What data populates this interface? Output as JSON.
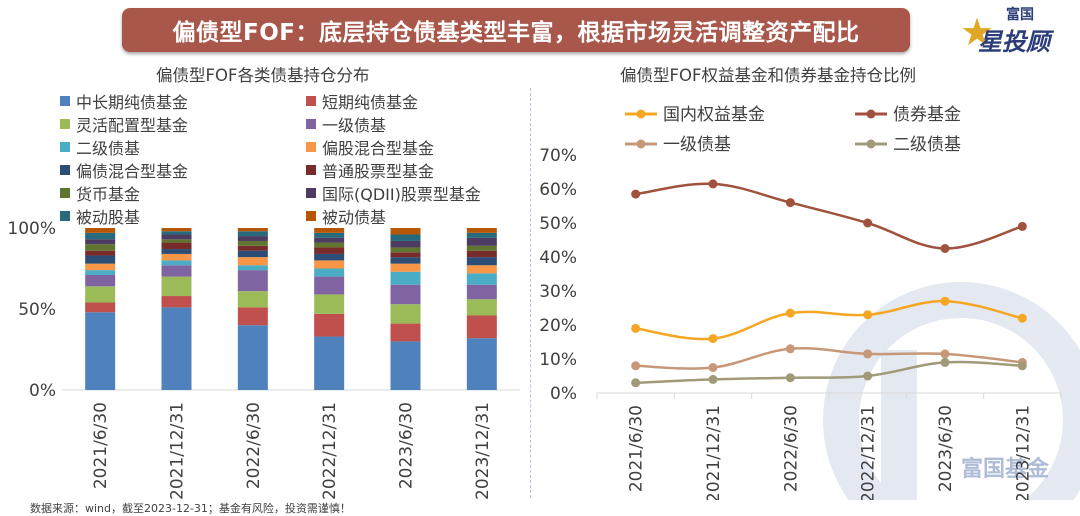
{
  "header": {
    "title": "偏债型FOF：底层持仓债基类型丰富，根据市场灵活调整资产配比",
    "logo_top": "富国",
    "logo_main": "星投顾"
  },
  "watermark": "富国基金",
  "footer": "数据来源：wind，截至2023-12-31；基金有风险，投资需谨慎！",
  "colors": {
    "banner": "#a8574a",
    "divider": "#b8c4d8"
  },
  "chart_data": [
    {
      "type": "bar",
      "stacked": true,
      "title": "偏债型FOF各类债基持仓分布",
      "categories": [
        "2021/6/30",
        "2021/12/31",
        "2022/6/30",
        "2022/12/31",
        "2023/6/30",
        "2023/12/31"
      ],
      "ylim": [
        0,
        100
      ],
      "yticks": [
        "0%",
        "50%",
        "100%"
      ],
      "legend_placement": "top",
      "series": [
        {
          "name": "中长期纯债基金",
          "color": "#4f81bd",
          "values": [
            48,
            51,
            40,
            33,
            30,
            32
          ]
        },
        {
          "name": "短期纯债基金",
          "color": "#c0504d",
          "values": [
            6,
            7,
            11,
            14,
            11,
            14
          ]
        },
        {
          "name": "灵活配置型基金",
          "color": "#9bbb59",
          "values": [
            10,
            12,
            10,
            12,
            12,
            10
          ]
        },
        {
          "name": "一级债基",
          "color": "#8064a2",
          "values": [
            7,
            7,
            13,
            11,
            12,
            9
          ]
        },
        {
          "name": "二级债基",
          "color": "#4bacc6",
          "values": [
            3,
            3,
            3,
            5,
            8,
            7
          ]
        },
        {
          "name": "偏股混合型基金",
          "color": "#f79646",
          "values": [
            4,
            4,
            5,
            5,
            5,
            5
          ]
        },
        {
          "name": "偏债混合型基金",
          "color": "#2c4d75",
          "values": [
            5,
            3,
            4,
            4,
            4,
            5
          ]
        },
        {
          "name": "普通股票型基金",
          "color": "#772c2a",
          "values": [
            3,
            4,
            3,
            4,
            3,
            4
          ]
        },
        {
          "name": "货币基金",
          "color": "#5f7530",
          "values": [
            4,
            2,
            3,
            3,
            3,
            3
          ]
        },
        {
          "name": "国际(QDII)股票型基金",
          "color": "#4d3b62",
          "values": [
            3,
            3,
            3,
            3,
            4,
            5
          ]
        },
        {
          "name": "被动股基",
          "color": "#276a7c",
          "values": [
            4,
            2,
            3,
            3,
            4,
            3
          ]
        },
        {
          "name": "被动债基",
          "color": "#b65708",
          "values": [
            3,
            2,
            2,
            3,
            4,
            3
          ]
        }
      ]
    },
    {
      "type": "line",
      "title": "偏债型FOF权益基金和债券基金持仓比例",
      "categories": [
        "2021/6/30",
        "2021/12/31",
        "2022/6/30",
        "2022/12/31",
        "2023/6/30",
        "2023/12/31"
      ],
      "ylim": [
        0,
        70
      ],
      "yticks": [
        "0%",
        "10%",
        "20%",
        "30%",
        "40%",
        "50%",
        "60%",
        "70%"
      ],
      "legend_placement": "top",
      "series": [
        {
          "name": "国内权益基金",
          "color": "#f5a623",
          "values": [
            19,
            16,
            23.5,
            23,
            27,
            22
          ]
        },
        {
          "name": "债券基金",
          "color": "#a0523e",
          "values": [
            58.5,
            61.5,
            56,
            50,
            42.5,
            49
          ]
        },
        {
          "name": "一级债基",
          "color": "#c69878",
          "values": [
            8,
            7.5,
            13,
            11.5,
            11.5,
            9
          ]
        },
        {
          "name": "二级债基",
          "color": "#a09a78",
          "values": [
            3,
            4,
            4.5,
            5,
            9,
            8
          ]
        }
      ]
    }
  ]
}
